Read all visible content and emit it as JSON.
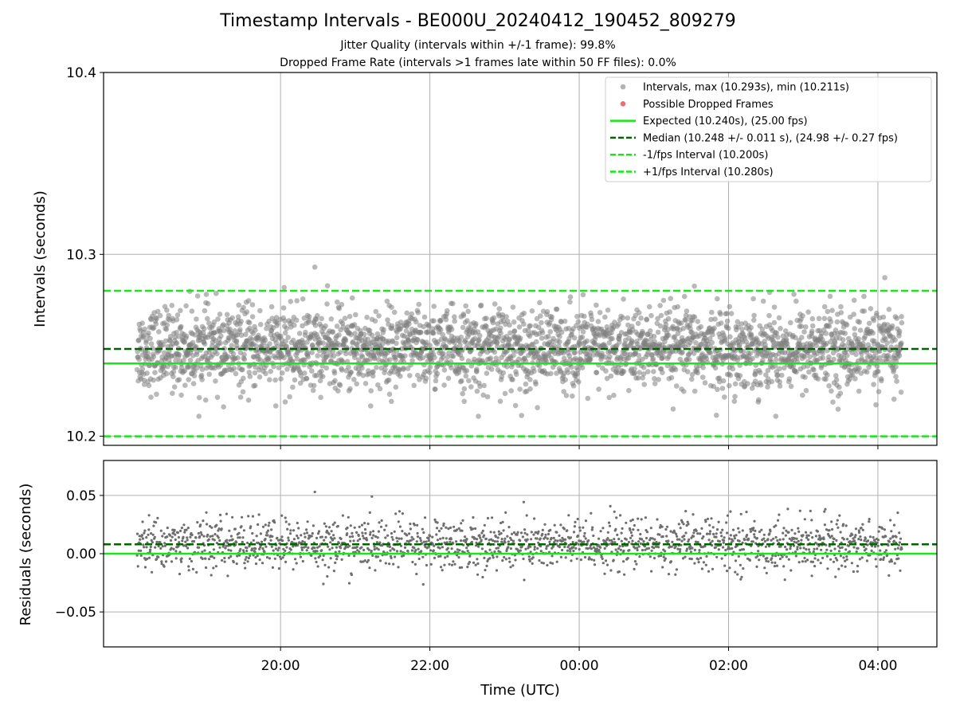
{
  "chart_data": {
    "type": "scatter",
    "title": "Timestamp Intervals - BE000U_20240412_190452_809279",
    "subtitle_1": "Jitter Quality (intervals within +/-1 frame): 99.8%",
    "subtitle_2": "Dropped Frame Rate (intervals >1 frames late within 50 FF files): 0.0%",
    "xlabel": "Time (UTC)",
    "x_ticks": [
      "20:00",
      "22:00",
      "00:00",
      "02:00",
      "04:00"
    ],
    "top_panel": {
      "ylabel": "Intervals (seconds)",
      "ylim": [
        10.195,
        10.4
      ],
      "y_ticks": [
        "10.2",
        "10.3",
        "10.4"
      ],
      "expected": 10.24,
      "median": 10.248,
      "lower_bound": 10.2,
      "upper_bound": 10.28,
      "max": 10.293,
      "min": 10.211
    },
    "bottom_panel": {
      "ylabel": "Residuals (seconds)",
      "ylim": [
        -0.08,
        0.08
      ],
      "y_ticks": [
        "0.05",
        "0.00",
        "−0.05"
      ],
      "expected": 0.0,
      "median": 0.008
    },
    "x_range_hours": [
      17.63,
      28.79
    ],
    "data_time_range_hours": [
      18.08,
      28.32
    ],
    "n_points": 2880,
    "scatter_spread_seconds": 0.011,
    "series": [
      {
        "name": "Intervals, max (10.293s), min (10.211s)",
        "color": "#808080",
        "style": "scatter"
      },
      {
        "name": "Possible Dropped Frames",
        "color": "#e8615d",
        "style": "scatter"
      },
      {
        "name": "Expected (10.240s), (25.00 fps)",
        "color": "#17e617",
        "style": "solid"
      },
      {
        "name": "Median (10.248 +/- 0.011 s), (24.98 +/- 0.27 fps)",
        "color": "#006400",
        "style": "dashed"
      },
      {
        "name": "-1/fps Interval (10.200s)",
        "color": "#17e617",
        "style": "dashed"
      },
      {
        "name": "+1/fps Interval (10.280s)",
        "color": "#17e617",
        "style": "dashed"
      }
    ]
  }
}
